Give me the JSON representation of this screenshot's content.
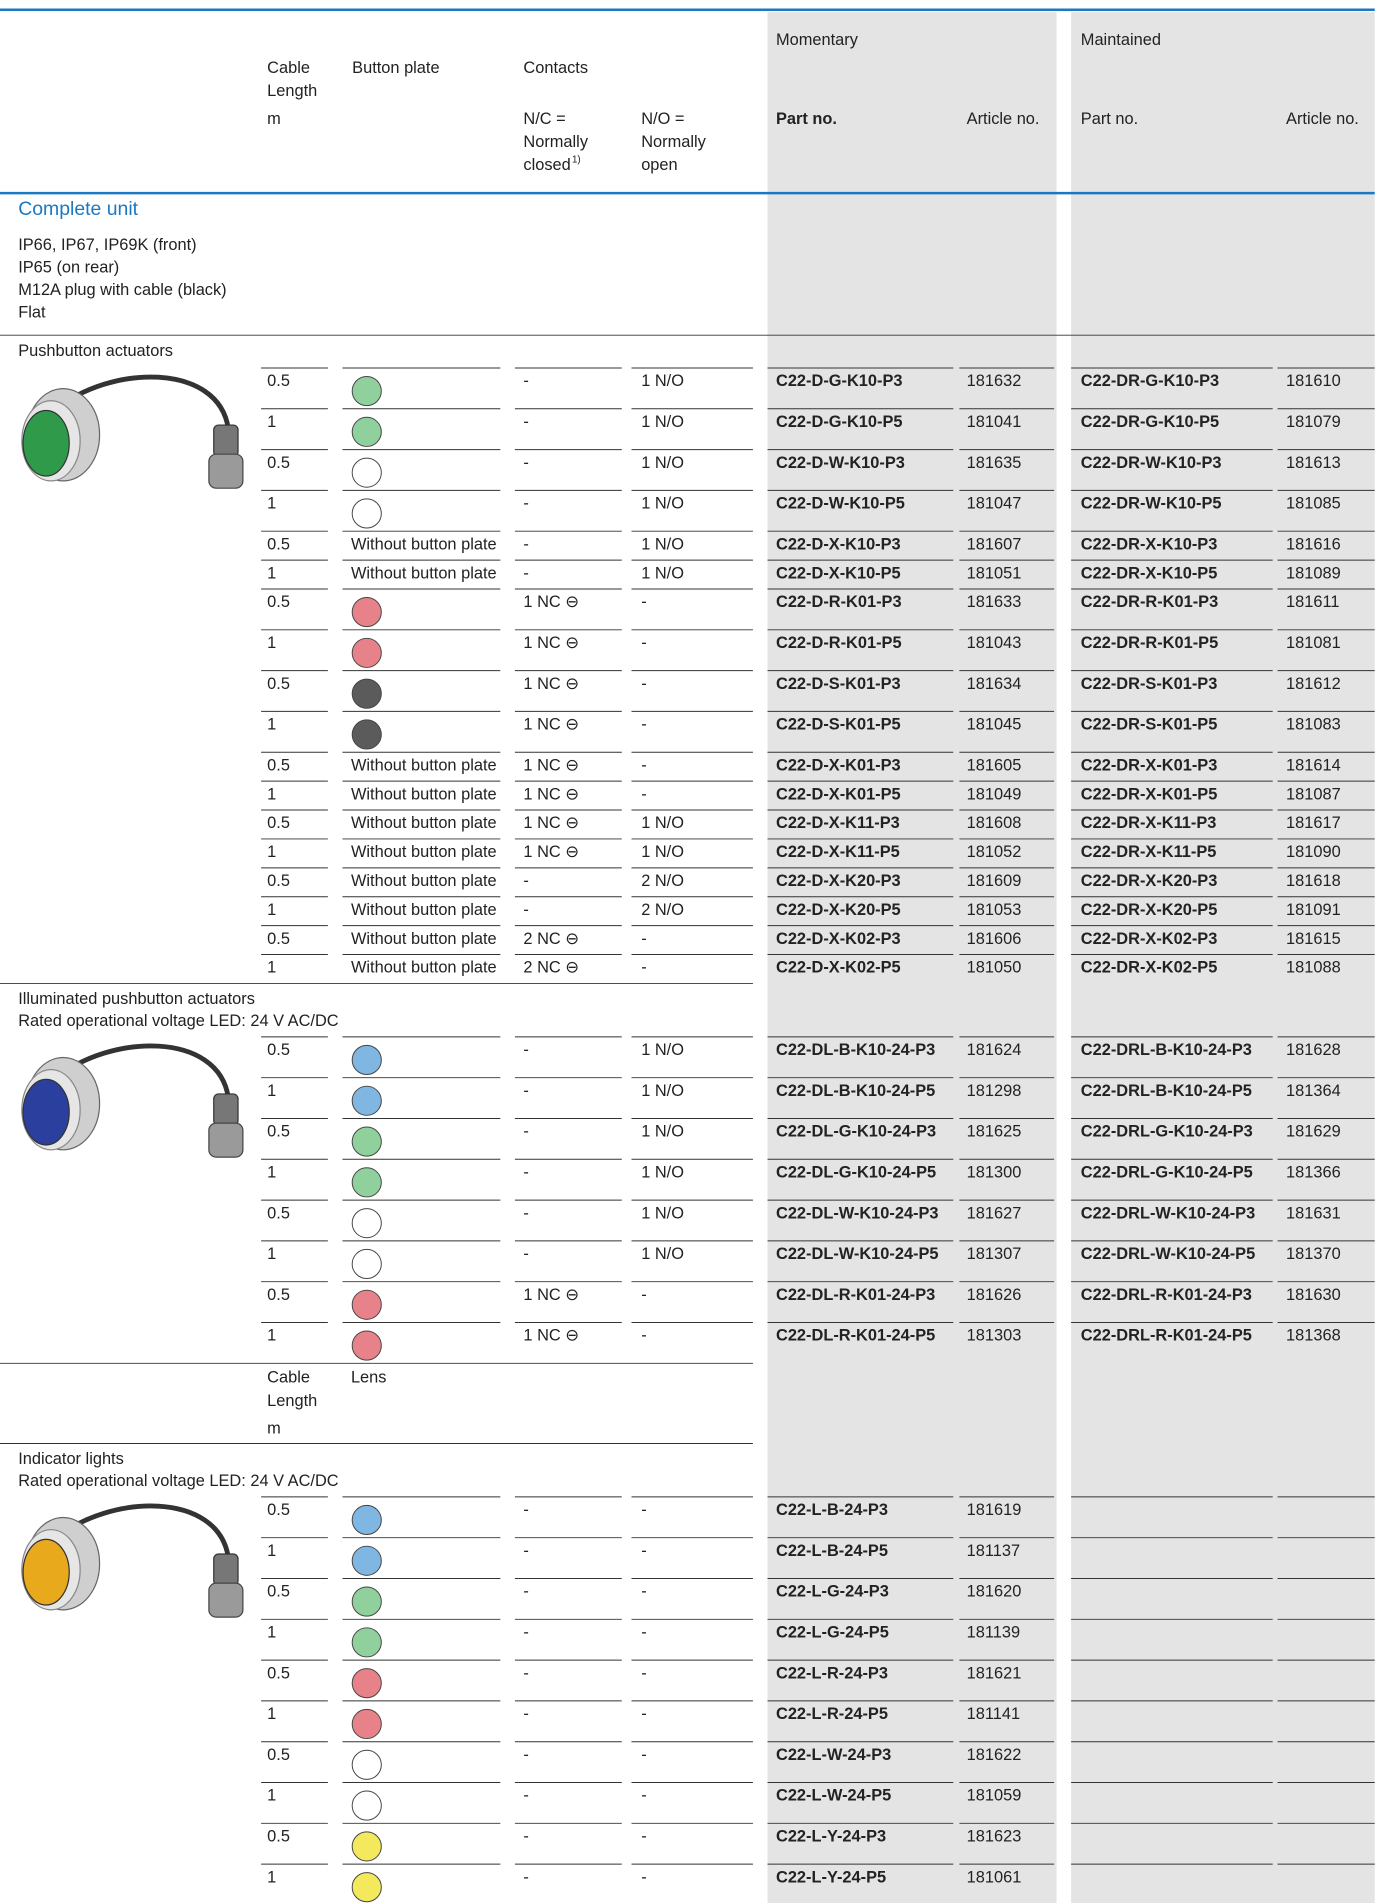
{
  "header": {
    "cable_length": [
      "Cable",
      "Length"
    ],
    "cable_unit": "m",
    "button_plate": "Button plate",
    "contacts": "Contacts",
    "nc": [
      "N/C =",
      "Normally",
      "closed"
    ],
    "nc_note": "1)",
    "no": [
      "N/O =",
      "Normally",
      "open"
    ],
    "momentary": {
      "title": "Momentary",
      "part_no": "Part no.",
      "article_no": "Article no."
    },
    "maintained": {
      "title": "Maintained",
      "part_no": "Part no.",
      "article_no": "Article no."
    }
  },
  "unit": {
    "title": "Complete unit",
    "lines": [
      "IP66, IP67, IP69K (front)",
      "IP65 (on rear)",
      "M12A plug with cable (black)",
      "Flat"
    ]
  },
  "sections": [
    {
      "title": [
        "Pushbutton actuators"
      ],
      "photo_color": "#2f9a4a",
      "rows": [
        [
          "0.5",
          {
            "color": "#8fd09c"
          },
          "-",
          "1 N/O",
          "C22-D-G-K10-P3",
          "181632",
          "C22-DR-G-K10-P3",
          "181610"
        ],
        [
          "1",
          {
            "color": "#8fd09c"
          },
          "-",
          "1 N/O",
          "C22-D-G-K10-P5",
          "181041",
          "C22-DR-G-K10-P5",
          "181079"
        ],
        [
          "0.5",
          {
            "color": "#ffffff"
          },
          "-",
          "1 N/O",
          "C22-D-W-K10-P3",
          "181635",
          "C22-DR-W-K10-P3",
          "181613"
        ],
        [
          "1",
          {
            "color": "#ffffff"
          },
          "-",
          "1 N/O",
          "C22-D-W-K10-P5",
          "181047",
          "C22-DR-W-K10-P5",
          "181085"
        ],
        [
          "0.5",
          "Without button plate",
          "-",
          "1 N/O",
          "C22-D-X-K10-P3",
          "181607",
          "C22-DR-X-K10-P3",
          "181616"
        ],
        [
          "1",
          "Without button plate",
          "-",
          "1 N/O",
          "C22-D-X-K10-P5",
          "181051",
          "C22-DR-X-K10-P5",
          "181089"
        ],
        [
          "0.5",
          {
            "color": "#e8828a"
          },
          "1 NC ⊖",
          "-",
          "C22-D-R-K01-P3",
          "181633",
          "C22-DR-R-K01-P3",
          "181611"
        ],
        [
          "1",
          {
            "color": "#e8828a"
          },
          "1 NC ⊖",
          "-",
          "C22-D-R-K01-P5",
          "181043",
          "C22-DR-R-K01-P5",
          "181081"
        ],
        [
          "0.5",
          {
            "color": "#5b5b5b"
          },
          "1 NC ⊖",
          "-",
          "C22-D-S-K01-P3",
          "181634",
          "C22-DR-S-K01-P3",
          "181612"
        ],
        [
          "1",
          {
            "color": "#5b5b5b"
          },
          "1 NC ⊖",
          "-",
          "C22-D-S-K01-P5",
          "181045",
          "C22-DR-S-K01-P5",
          "181083"
        ],
        [
          "0.5",
          "Without button plate",
          "1 NC ⊖",
          "-",
          "C22-D-X-K01-P3",
          "181605",
          "C22-DR-X-K01-P3",
          "181614"
        ],
        [
          "1",
          "Without button plate",
          "1 NC ⊖",
          "-",
          "C22-D-X-K01-P5",
          "181049",
          "C22-DR-X-K01-P5",
          "181087"
        ],
        [
          "0.5",
          "Without button plate",
          "1 NC ⊖",
          "1 N/O",
          "C22-D-X-K11-P3",
          "181608",
          "C22-DR-X-K11-P3",
          "181617"
        ],
        [
          "1",
          "Without button plate",
          "1 NC ⊖",
          "1 N/O",
          "C22-D-X-K11-P5",
          "181052",
          "C22-DR-X-K11-P5",
          "181090"
        ],
        [
          "0.5",
          "Without button plate",
          "-",
          "2 N/O",
          "C22-D-X-K20-P3",
          "181609",
          "C22-DR-X-K20-P3",
          "181618"
        ],
        [
          "1",
          "Without button plate",
          "-",
          "2 N/O",
          "C22-D-X-K20-P5",
          "181053",
          "C22-DR-X-K20-P5",
          "181091"
        ],
        [
          "0.5",
          "Without button plate",
          "2 NC ⊖",
          "-",
          "C22-D-X-K02-P3",
          "181606",
          "C22-DR-X-K02-P3",
          "181615"
        ],
        [
          "1",
          "Without button plate",
          "2 NC ⊖",
          "-",
          "C22-D-X-K02-P5",
          "181050",
          "C22-DR-X-K02-P5",
          "181088"
        ]
      ]
    },
    {
      "title": [
        "Illuminated pushbutton actuators",
        "Rated operational voltage LED: 24 V AC/DC"
      ],
      "photo_color": "#2b3f9e",
      "rows": [
        [
          "0.5",
          {
            "color": "#7fb6e2"
          },
          "-",
          "1 N/O",
          "C22-DL-B-K10-24-P3",
          "181624",
          "C22-DRL-B-K10-24-P3",
          "181628"
        ],
        [
          "1",
          {
            "color": "#7fb6e2"
          },
          "-",
          "1 N/O",
          "C22-DL-B-K10-24-P5",
          "181298",
          "C22-DRL-B-K10-24-P5",
          "181364"
        ],
        [
          "0.5",
          {
            "color": "#8fd09c"
          },
          "-",
          "1 N/O",
          "C22-DL-G-K10-24-P3",
          "181625",
          "C22-DRL-G-K10-24-P3",
          "181629"
        ],
        [
          "1",
          {
            "color": "#8fd09c"
          },
          "-",
          "1 N/O",
          "C22-DL-G-K10-24-P5",
          "181300",
          "C22-DRL-G-K10-24-P5",
          "181366"
        ],
        [
          "0.5",
          {
            "color": "#ffffff"
          },
          "-",
          "1 N/O",
          "C22-DL-W-K10-24-P3",
          "181627",
          "C22-DRL-W-K10-24-P3",
          "181631"
        ],
        [
          "1",
          {
            "color": "#ffffff"
          },
          "-",
          "1 N/O",
          "C22-DL-W-K10-24-P5",
          "181307",
          "C22-DRL-W-K10-24-P5",
          "181370"
        ],
        [
          "0.5",
          {
            "color": "#e8828a"
          },
          "1 NC ⊖",
          "-",
          "C22-DL-R-K01-24-P3",
          "181626",
          "C22-DRL-R-K01-24-P3",
          "181630"
        ],
        [
          "1",
          {
            "color": "#e8828a"
          },
          "1 NC ⊖",
          "-",
          "C22-DL-R-K01-24-P5",
          "181303",
          "C22-DRL-R-K01-24-P5",
          "181368"
        ]
      ]
    },
    {
      "subheader": {
        "cable_length": [
          "Cable",
          "Length"
        ],
        "cable_unit": "m",
        "lens": "Lens"
      },
      "title": [
        "Indicator lights",
        "Rated operational voltage LED: 24 V AC/DC"
      ],
      "photo_color": "#e9a91c",
      "rows": [
        [
          "0.5",
          {
            "color": "#7fb6e2"
          },
          "-",
          "-",
          "C22-L-B-24-P3",
          "181619"
        ],
        [
          "1",
          {
            "color": "#7fb6e2"
          },
          "-",
          "-",
          "C22-L-B-24-P5",
          "181137"
        ],
        [
          "0.5",
          {
            "color": "#8fd09c"
          },
          "-",
          "-",
          "C22-L-G-24-P3",
          "181620"
        ],
        [
          "1",
          {
            "color": "#8fd09c"
          },
          "-",
          "-",
          "C22-L-G-24-P5",
          "181139"
        ],
        [
          "0.5",
          {
            "color": "#e8828a"
          },
          "-",
          "-",
          "C22-L-R-24-P3",
          "181621"
        ],
        [
          "1",
          {
            "color": "#e8828a"
          },
          "-",
          "-",
          "C22-L-R-24-P5",
          "181141"
        ],
        [
          "0.5",
          {
            "color": "#ffffff"
          },
          "-",
          "-",
          "C22-L-W-24-P3",
          "181622"
        ],
        [
          "1",
          {
            "color": "#ffffff"
          },
          "-",
          "-",
          "C22-L-W-24-P5",
          "181059"
        ],
        [
          "0.5",
          {
            "color": "#f4e95c"
          },
          "-",
          "-",
          "C22-L-Y-24-P3",
          "181623"
        ],
        [
          "1",
          {
            "color": "#f4e95c"
          },
          "-",
          "-",
          "C22-L-Y-24-P5",
          "181061"
        ]
      ]
    }
  ]
}
